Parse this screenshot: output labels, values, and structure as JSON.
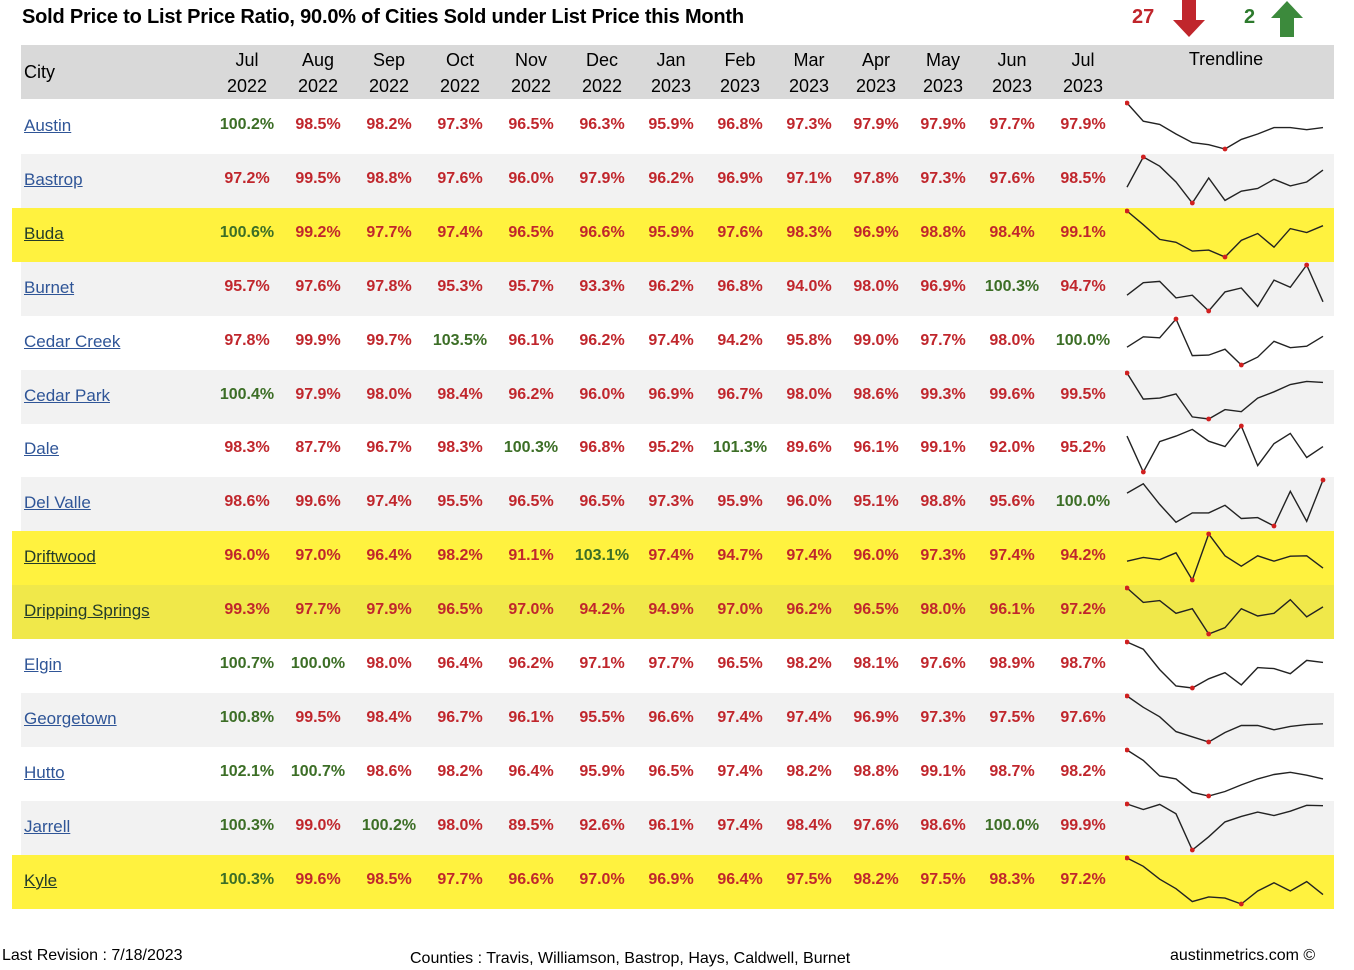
{
  "title": "Sold Price to List Price Ratio, 90.0% of Cities Sold under List Price this Month",
  "summary": {
    "down_count": "27",
    "up_count": "2",
    "down_color": "#c0262c",
    "up_color": "#3c8a3c"
  },
  "header": {
    "city": "City",
    "trend": "Trendline",
    "months": [
      {
        "m": "Jul",
        "y": "2022"
      },
      {
        "m": "Aug",
        "y": "2022"
      },
      {
        "m": "Sep",
        "y": "2022"
      },
      {
        "m": "Oct",
        "y": "2022"
      },
      {
        "m": "Nov",
        "y": "2022"
      },
      {
        "m": "Dec",
        "y": "2022"
      },
      {
        "m": "Jan",
        "y": "2023"
      },
      {
        "m": "Feb",
        "y": "2023"
      },
      {
        "m": "Mar",
        "y": "2023"
      },
      {
        "m": "Apr",
        "y": "2023"
      },
      {
        "m": "May",
        "y": "2023"
      },
      {
        "m": "Jun",
        "y": "2023"
      },
      {
        "m": "Jul",
        "y": "2023"
      }
    ]
  },
  "rows": [
    {
      "city": "Austin",
      "highlight": false,
      "values": [
        100.2,
        98.5,
        98.2,
        97.3,
        96.5,
        96.3,
        95.9,
        96.8,
        97.3,
        97.9,
        97.9,
        97.7,
        97.9
      ]
    },
    {
      "city": "Bastrop",
      "highlight": false,
      "values": [
        97.2,
        99.5,
        98.8,
        97.6,
        96.0,
        97.9,
        96.2,
        96.9,
        97.1,
        97.8,
        97.3,
        97.6,
        98.5
      ]
    },
    {
      "city": "Buda",
      "highlight": true,
      "values": [
        100.6,
        99.2,
        97.7,
        97.4,
        96.5,
        96.6,
        95.9,
        97.6,
        98.3,
        96.9,
        98.8,
        98.4,
        99.1
      ]
    },
    {
      "city": "Burnet",
      "highlight": false,
      "values": [
        95.7,
        97.6,
        97.8,
        95.3,
        95.7,
        93.3,
        96.2,
        96.8,
        94.0,
        98.0,
        96.9,
        100.3,
        94.7
      ]
    },
    {
      "city": "Cedar Creek",
      "highlight": false,
      "values": [
        97.8,
        99.9,
        99.7,
        103.5,
        96.1,
        96.2,
        97.4,
        94.2,
        95.8,
        99.0,
        97.7,
        98.0,
        100.0
      ]
    },
    {
      "city": "Cedar Park",
      "highlight": false,
      "values": [
        100.4,
        97.9,
        98.0,
        98.4,
        96.2,
        96.0,
        96.9,
        96.7,
        98.0,
        98.6,
        99.3,
        99.6,
        99.5
      ]
    },
    {
      "city": "Dale",
      "highlight": false,
      "values": [
        98.3,
        87.7,
        96.7,
        98.3,
        100.3,
        96.8,
        95.2,
        101.3,
        89.6,
        96.1,
        99.1,
        92.0,
        95.2
      ]
    },
    {
      "city": "Del Valle",
      "highlight": false,
      "values": [
        98.6,
        99.6,
        97.4,
        95.5,
        96.5,
        96.5,
        97.3,
        95.9,
        96.0,
        95.1,
        98.8,
        95.6,
        100.0
      ]
    },
    {
      "city": "Driftwood",
      "highlight": true,
      "values": [
        96.0,
        97.0,
        96.4,
        98.2,
        91.1,
        103.1,
        97.4,
        94.7,
        97.4,
        96.0,
        97.3,
        97.4,
        94.2
      ]
    },
    {
      "city": "Dripping Springs",
      "highlight": true,
      "values": [
        99.3,
        97.7,
        97.9,
        96.5,
        97.0,
        94.2,
        94.9,
        97.0,
        96.2,
        96.5,
        98.0,
        96.1,
        97.2
      ]
    },
    {
      "city": "Elgin",
      "highlight": false,
      "values": [
        100.7,
        100.0,
        98.0,
        96.4,
        96.2,
        97.1,
        97.7,
        96.5,
        98.2,
        98.1,
        97.6,
        98.9,
        98.7
      ]
    },
    {
      "city": "Georgetown",
      "highlight": false,
      "values": [
        100.8,
        99.5,
        98.4,
        96.7,
        96.1,
        95.5,
        96.6,
        97.4,
        97.4,
        96.9,
        97.3,
        97.5,
        97.6
      ]
    },
    {
      "city": "Hutto",
      "highlight": false,
      "values": [
        102.1,
        100.7,
        98.6,
        98.2,
        96.4,
        95.9,
        96.5,
        97.4,
        98.2,
        98.8,
        99.1,
        98.7,
        98.2
      ]
    },
    {
      "city": "Jarrell",
      "highlight": false,
      "values": [
        100.3,
        99.0,
        100.2,
        98.0,
        89.5,
        92.6,
        96.1,
        97.4,
        98.4,
        97.6,
        98.6,
        100.0,
        99.9
      ]
    },
    {
      "city": "Kyle",
      "highlight": true,
      "values": [
        100.3,
        99.6,
        98.5,
        97.7,
        96.6,
        97.0,
        96.9,
        96.4,
        97.5,
        98.2,
        97.5,
        98.3,
        97.2
      ]
    }
  ],
  "footer": {
    "revision": "Last Revision : 7/18/2023",
    "counties": "Counties : Travis, Williamson, Bastrop, Hays, Caldwell, Burnet",
    "site": "austinmetrics.com ©"
  }
}
